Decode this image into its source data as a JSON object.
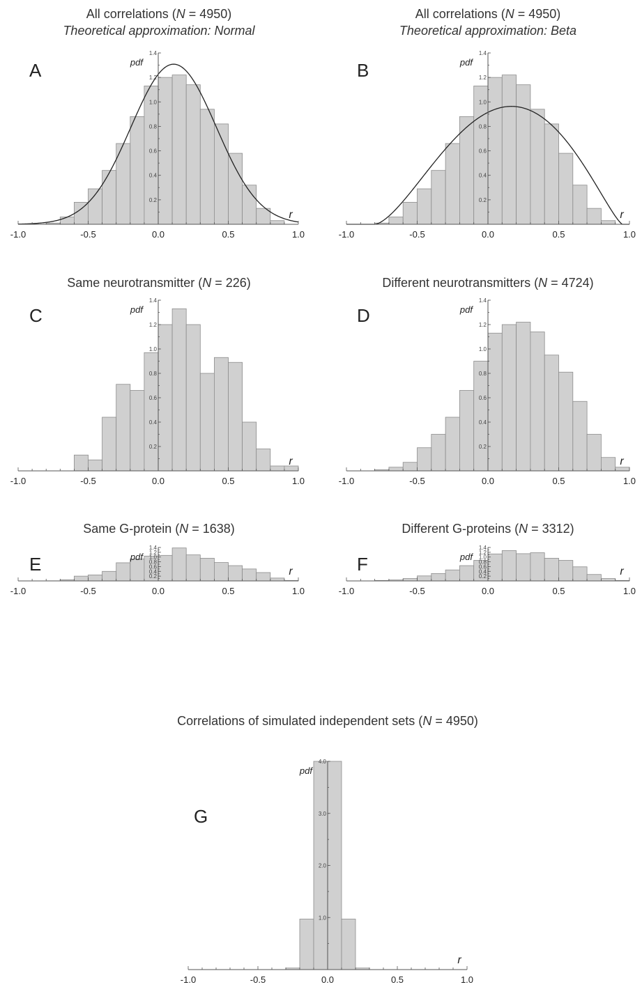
{
  "chart_data": [
    {
      "type": "bar",
      "letter": "A",
      "title_parts": [
        "All correlations (",
        "N",
        " = 4950)"
      ],
      "subtitle": "Theoretical approximation: Normal",
      "ylabel": "pdf",
      "xlabel": "r",
      "xlim": [
        -1.0,
        1.0
      ],
      "ylim": [
        0,
        1.4
      ],
      "xticks": [
        "-1.0",
        "-0.5",
        "0.0",
        "0.5",
        "1.0"
      ],
      "yticks": [
        "0.2",
        "0.4",
        "0.6",
        "0.8",
        "1.0",
        "1.2",
        "1.4"
      ],
      "bin_width": 0.1,
      "bin_edges_start": -0.8,
      "values": [
        0.01,
        0.06,
        0.18,
        0.29,
        0.44,
        0.66,
        0.88,
        1.13,
        1.2,
        1.22,
        1.14,
        0.94,
        0.82,
        0.58,
        0.32,
        0.13,
        0.03
      ],
      "fit": {
        "distribution": "Normal",
        "mean": 0.11,
        "sd": 0.305
      }
    },
    {
      "type": "bar",
      "letter": "B",
      "title_parts": [
        "All correlations (",
        "N",
        " = 4950)"
      ],
      "subtitle": "Theoretical approximation: Beta",
      "ylabel": "pdf",
      "xlabel": "r",
      "xlim": [
        -1.0,
        1.0
      ],
      "ylim": [
        0,
        1.4
      ],
      "xticks": [
        "-1.0",
        "-0.5",
        "0.0",
        "0.5",
        "1.0"
      ],
      "yticks": [
        "0.2",
        "0.4",
        "0.6",
        "0.8",
        "1.0",
        "1.2",
        "1.4"
      ],
      "bin_width": 0.1,
      "bin_edges_start": -0.8,
      "values": [
        0.01,
        0.06,
        0.18,
        0.29,
        0.44,
        0.66,
        0.88,
        1.13,
        1.2,
        1.22,
        1.14,
        0.94,
        0.82,
        0.58,
        0.32,
        0.13,
        0.03
      ],
      "fit": {
        "distribution": "Beta",
        "support": [
          -0.8,
          0.95
        ],
        "alpha": 2.6,
        "beta": 2.3
      }
    },
    {
      "type": "bar",
      "letter": "C",
      "title_parts": [
        "Same neurotransmitter (",
        "N",
        " = 226)"
      ],
      "subtitle": "",
      "ylabel": "pdf",
      "xlabel": "r",
      "xlim": [
        -1.0,
        1.0
      ],
      "ylim": [
        0,
        1.4
      ],
      "xticks": [
        "-1.0",
        "-0.5",
        "0.0",
        "0.5",
        "1.0"
      ],
      "yticks": [
        "0.2",
        "0.4",
        "0.6",
        "0.8",
        "1.0",
        "1.2",
        "1.4"
      ],
      "bin_width": 0.1,
      "bin_edges_start": -0.6,
      "values": [
        0.13,
        0.09,
        0.44,
        0.71,
        0.66,
        0.97,
        1.2,
        1.33,
        1.2,
        0.8,
        0.93,
        0.89,
        0.4,
        0.18,
        0.04,
        0.04
      ]
    },
    {
      "type": "bar",
      "letter": "D",
      "title_parts": [
        "Different neurotransmitters (",
        "N",
        " = 4724)"
      ],
      "subtitle": "",
      "ylabel": "pdf",
      "xlabel": "r",
      "xlim": [
        -1.0,
        1.0
      ],
      "ylim": [
        0,
        1.4
      ],
      "xticks": [
        "-1.0",
        "-0.5",
        "0.0",
        "0.5",
        "1.0"
      ],
      "yticks": [
        "0.2",
        "0.4",
        "0.6",
        "0.8",
        "1.0",
        "1.2",
        "1.4"
      ],
      "bin_width": 0.1,
      "bin_edges_start": -0.8,
      "values": [
        0.01,
        0.03,
        0.07,
        0.19,
        0.3,
        0.44,
        0.66,
        0.9,
        1.13,
        1.2,
        1.22,
        1.14,
        0.95,
        0.81,
        0.57,
        0.3,
        0.11,
        0.03
      ]
    },
    {
      "type": "bar",
      "letter": "E",
      "title_parts": [
        "Same G-protein (",
        "N",
        " = 1638)"
      ],
      "subtitle": "",
      "ylabel": "pdf",
      "xlabel": "r",
      "xlim": [
        -1.0,
        1.0
      ],
      "ylim": [
        0,
        1.4
      ],
      "xticks": [
        "-1.0",
        "-0.5",
        "0.0",
        "0.5",
        "1.0"
      ],
      "yticks": [
        "0.2",
        "0.4",
        "0.6",
        "0.8",
        "1.0",
        "1.2",
        "1.4"
      ],
      "bin_width": 0.1,
      "bin_edges_start": -0.8,
      "values": [
        0.005,
        0.05,
        0.2,
        0.25,
        0.4,
        0.76,
        0.92,
        1.04,
        1.07,
        1.38,
        1.09,
        0.95,
        0.77,
        0.64,
        0.5,
        0.35,
        0.12,
        0.02
      ]
    },
    {
      "type": "bar",
      "letter": "F",
      "title_parts": [
        "Different G-proteins (",
        "N",
        " = 3312)"
      ],
      "subtitle": "",
      "ylabel": "pdf",
      "xlabel": "r",
      "xlim": [
        -1.0,
        1.0
      ],
      "ylim": [
        0,
        1.4
      ],
      "xticks": [
        "-1.0",
        "-0.5",
        "0.0",
        "0.5",
        "1.0"
      ],
      "yticks": [
        "0.2",
        "0.4",
        "0.6",
        "0.8",
        "1.0",
        "1.2",
        "1.4"
      ],
      "bin_width": 0.1,
      "bin_edges_start": -0.8,
      "values": [
        0.02,
        0.04,
        0.1,
        0.21,
        0.31,
        0.46,
        0.64,
        0.86,
        1.13,
        1.27,
        1.14,
        1.18,
        0.95,
        0.86,
        0.59,
        0.27,
        0.1,
        0.02
      ]
    },
    {
      "type": "bar",
      "letter": "G",
      "title_parts": [
        "Correlations of simulated independent sets (",
        "N",
        " = 4950)"
      ],
      "subtitle": "",
      "ylabel": "pdf",
      "xlabel": "r",
      "xlim": [
        -1.0,
        1.0
      ],
      "ylim": [
        0,
        4.0
      ],
      "xticks": [
        "-1.0",
        "-0.5",
        "0.0",
        "0.5",
        "1.0"
      ],
      "yticks": [
        "1.0",
        "2.0",
        "3.0",
        "4.0"
      ],
      "bin_width": 0.1,
      "bin_edges_start": -0.3,
      "values": [
        0.03,
        0.97,
        4.0,
        4.0,
        0.97,
        0.03
      ]
    }
  ]
}
